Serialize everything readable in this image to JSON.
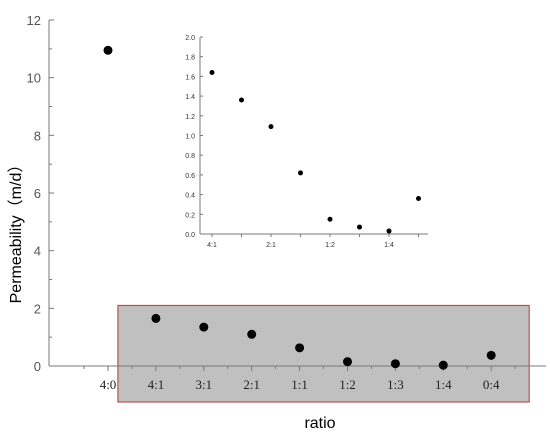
{
  "colors": {
    "axis": "#7a7a7a",
    "marker": "#000000",
    "highlight_fill": "#c0c0c0",
    "highlight_stroke": "#c0504d"
  },
  "chart_data": [
    {
      "id": "main",
      "type": "scatter",
      "xlabel": "ratio",
      "ylabel": "Permeability（m/d）",
      "categories": [
        "4:0",
        "4:1",
        "3:1",
        "2:1",
        "1:1",
        "1:2",
        "1:3",
        "1:4",
        "0:4"
      ],
      "values": [
        10.95,
        1.65,
        1.35,
        1.1,
        0.63,
        0.15,
        0.08,
        0.03,
        0.37
      ],
      "ylim": [
        0,
        12
      ],
      "yticks": [
        "0",
        "2",
        "4",
        "6",
        "8",
        "10",
        "12"
      ],
      "grid": false,
      "highlight_region": {
        "from_category": "4:1",
        "to_category": "0:4",
        "ylim": [
          0,
          2.1
        ]
      }
    },
    {
      "id": "inset",
      "type": "scatter",
      "x": [
        1,
        2,
        3,
        4,
        5,
        6,
        7,
        8
      ],
      "values": [
        1.64,
        1.36,
        1.09,
        0.62,
        0.15,
        0.07,
        0.03,
        0.36
      ],
      "xticks": [
        "4:1",
        "2:1",
        "1:2",
        "1:4"
      ],
      "xtick_positions": [
        1,
        3,
        5,
        7
      ],
      "ylim": [
        0,
        2.0
      ],
      "yticks": [
        "0.0",
        "0.2",
        "0.4",
        "0.6",
        "0.8",
        "1.0",
        "1.2",
        "1.4",
        "1.6",
        "1.8",
        "2.0"
      ],
      "grid": false
    }
  ]
}
